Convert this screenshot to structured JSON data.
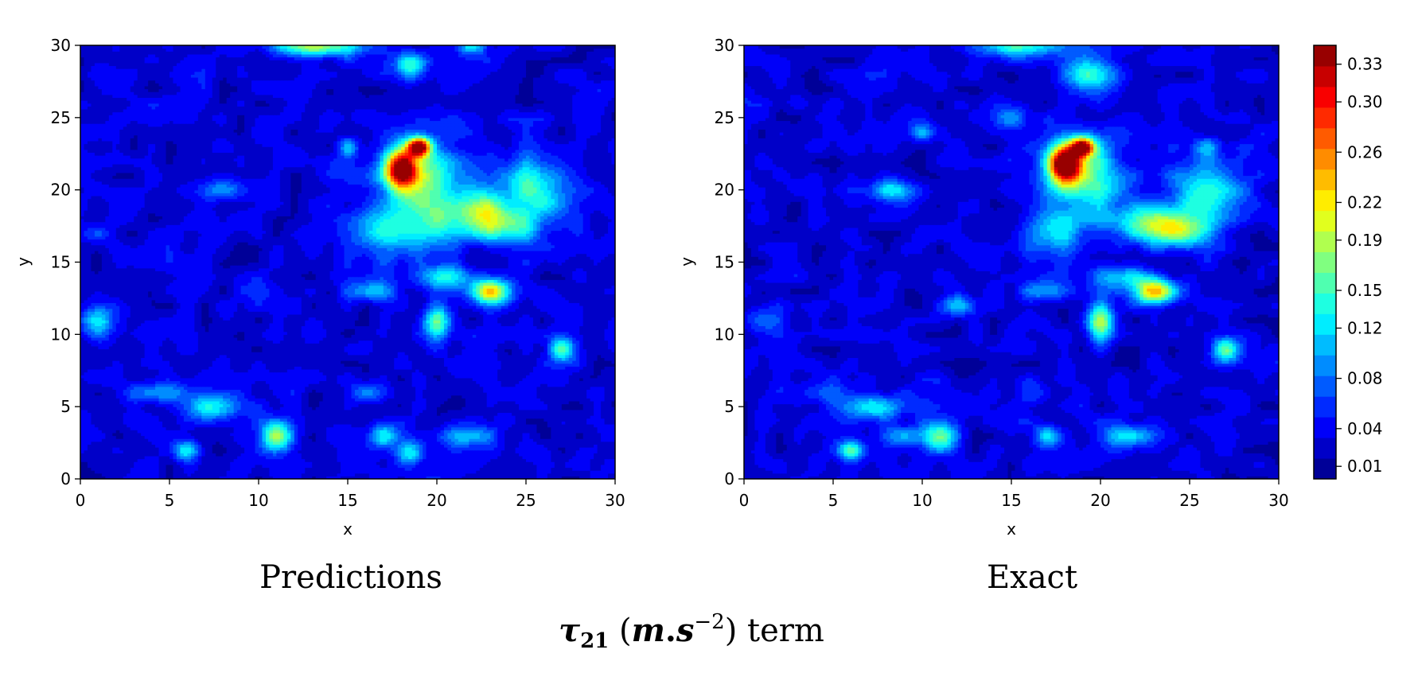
{
  "figure": {
    "caption_main": "term",
    "caption_symbol": "τ",
    "caption_sub": "21",
    "caption_unit_open": "(",
    "caption_unit_m": "m",
    "caption_unit_dot": ".",
    "caption_unit_s": "s",
    "caption_unit_exp": "−2",
    "caption_unit_close": ")"
  },
  "chart_data": [
    {
      "type": "heatmap",
      "panel_label": "Predictions",
      "xlabel": "x",
      "ylabel": "y",
      "xlim": [
        0,
        30
      ],
      "ylim": [
        0,
        30
      ],
      "xticks": [
        0,
        5,
        10,
        15,
        20,
        25,
        30
      ],
      "yticks": [
        0,
        5,
        10,
        15,
        20,
        25,
        30
      ],
      "background_level": 0.03,
      "hotspots": [
        {
          "x": 18,
          "y": 21.5,
          "value": 0.31,
          "sx": 0.6,
          "sy": 0.9
        },
        {
          "x": 19,
          "y": 23,
          "value": 0.3,
          "sx": 0.45,
          "sy": 0.45
        },
        {
          "x": 19,
          "y": 21,
          "value": 0.17,
          "sx": 1.6,
          "sy": 1.8
        },
        {
          "x": 23,
          "y": 13,
          "value": 0.22,
          "sx": 0.8,
          "sy": 0.6
        },
        {
          "x": 20.5,
          "y": 18,
          "value": 0.12,
          "sx": 1.2,
          "sy": 1.2
        },
        {
          "x": 22.5,
          "y": 18.5,
          "value": 0.15,
          "sx": 0.9,
          "sy": 1.0
        },
        {
          "x": 25.5,
          "y": 20,
          "value": 0.15,
          "sx": 1.4,
          "sy": 1.5
        },
        {
          "x": 24,
          "y": 17.5,
          "value": 0.14,
          "sx": 1.2,
          "sy": 0.9
        },
        {
          "x": 17.5,
          "y": 17,
          "value": 0.13,
          "sx": 1.3,
          "sy": 1.2
        },
        {
          "x": 20.5,
          "y": 14,
          "value": 0.13,
          "sx": 1.0,
          "sy": 0.6
        },
        {
          "x": 20,
          "y": 10.8,
          "value": 0.16,
          "sx": 0.5,
          "sy": 0.9
        },
        {
          "x": 16.5,
          "y": 13,
          "value": 0.11,
          "sx": 1.0,
          "sy": 0.5
        },
        {
          "x": 18.5,
          "y": 28.5,
          "value": 0.15,
          "sx": 0.6,
          "sy": 0.7
        },
        {
          "x": 13.5,
          "y": 30,
          "value": 0.19,
          "sx": 1.8,
          "sy": 0.5
        },
        {
          "x": 11,
          "y": 3,
          "value": 0.18,
          "sx": 0.6,
          "sy": 0.7
        },
        {
          "x": 7.5,
          "y": 5,
          "value": 0.14,
          "sx": 1.2,
          "sy": 0.6
        },
        {
          "x": 4.5,
          "y": 6,
          "value": 0.1,
          "sx": 1.3,
          "sy": 0.5
        },
        {
          "x": 27,
          "y": 9,
          "value": 0.16,
          "sx": 0.5,
          "sy": 0.6
        },
        {
          "x": 6,
          "y": 2,
          "value": 0.12,
          "sx": 0.5,
          "sy": 0.5
        },
        {
          "x": 17,
          "y": 3,
          "value": 0.14,
          "sx": 0.5,
          "sy": 0.6
        },
        {
          "x": 18.5,
          "y": 1.8,
          "value": 0.12,
          "sx": 0.5,
          "sy": 0.6
        },
        {
          "x": 21.5,
          "y": 3,
          "value": 0.1,
          "sx": 1.2,
          "sy": 0.5
        },
        {
          "x": 8,
          "y": 20,
          "value": 0.11,
          "sx": 0.9,
          "sy": 0.5
        },
        {
          "x": 15,
          "y": 23,
          "value": 0.1,
          "sx": 0.4,
          "sy": 0.5
        },
        {
          "x": 1,
          "y": 11,
          "value": 0.12,
          "sx": 0.6,
          "sy": 0.8
        },
        {
          "x": 22,
          "y": 30,
          "value": 0.14,
          "sx": 0.6,
          "sy": 0.4
        },
        {
          "x": 16,
          "y": 6,
          "value": 0.08,
          "sx": 0.6,
          "sy": 0.6
        },
        {
          "x": 1,
          "y": 17,
          "value": 0.06,
          "sx": 0.5,
          "sy": 0.5
        },
        {
          "x": 10,
          "y": 13,
          "value": 0.06,
          "sx": 0.5,
          "sy": 0.5
        }
      ]
    },
    {
      "type": "heatmap",
      "panel_label": "Exact",
      "xlabel": "x",
      "ylabel": "y",
      "xlim": [
        0,
        30
      ],
      "ylim": [
        0,
        30
      ],
      "xticks": [
        0,
        5,
        10,
        15,
        20,
        25,
        30
      ],
      "yticks": [
        0,
        5,
        10,
        15,
        20,
        25,
        30
      ],
      "background_level": 0.03,
      "hotspots": [
        {
          "x": 18,
          "y": 21.8,
          "value": 0.34,
          "sx": 0.6,
          "sy": 0.9
        },
        {
          "x": 19,
          "y": 23,
          "value": 0.31,
          "sx": 0.45,
          "sy": 0.45
        },
        {
          "x": 19,
          "y": 21,
          "value": 0.17,
          "sx": 1.5,
          "sy": 1.8
        },
        {
          "x": 23,
          "y": 13,
          "value": 0.24,
          "sx": 0.8,
          "sy": 0.6
        },
        {
          "x": 22.5,
          "y": 17.8,
          "value": 0.15,
          "sx": 1.4,
          "sy": 0.9
        },
        {
          "x": 24.5,
          "y": 17.2,
          "value": 0.17,
          "sx": 1.2,
          "sy": 0.8
        },
        {
          "x": 26,
          "y": 20,
          "value": 0.14,
          "sx": 1.5,
          "sy": 1.5
        },
        {
          "x": 17.5,
          "y": 17,
          "value": 0.11,
          "sx": 1.2,
          "sy": 1.1
        },
        {
          "x": 21,
          "y": 14,
          "value": 0.12,
          "sx": 1.1,
          "sy": 0.6
        },
        {
          "x": 20,
          "y": 10.8,
          "value": 0.18,
          "sx": 0.5,
          "sy": 0.9
        },
        {
          "x": 17,
          "y": 13,
          "value": 0.1,
          "sx": 1.0,
          "sy": 0.5
        },
        {
          "x": 19.5,
          "y": 28,
          "value": 0.14,
          "sx": 1.0,
          "sy": 1.0
        },
        {
          "x": 15,
          "y": 30,
          "value": 0.14,
          "sx": 1.8,
          "sy": 0.5
        },
        {
          "x": 11,
          "y": 3,
          "value": 0.18,
          "sx": 0.6,
          "sy": 0.7
        },
        {
          "x": 7.5,
          "y": 5,
          "value": 0.12,
          "sx": 1.2,
          "sy": 0.6
        },
        {
          "x": 4.5,
          "y": 6,
          "value": 0.08,
          "sx": 1.2,
          "sy": 0.5
        },
        {
          "x": 27,
          "y": 9,
          "value": 0.16,
          "sx": 0.5,
          "sy": 0.6
        },
        {
          "x": 6,
          "y": 2,
          "value": 0.16,
          "sx": 0.5,
          "sy": 0.5
        },
        {
          "x": 17,
          "y": 3,
          "value": 0.11,
          "sx": 0.5,
          "sy": 0.6
        },
        {
          "x": 21.5,
          "y": 3,
          "value": 0.14,
          "sx": 1.1,
          "sy": 0.5
        },
        {
          "x": 8.5,
          "y": 20,
          "value": 0.13,
          "sx": 0.9,
          "sy": 0.5
        },
        {
          "x": 10,
          "y": 24,
          "value": 0.1,
          "sx": 0.4,
          "sy": 0.5
        },
        {
          "x": 15,
          "y": 25,
          "value": 0.08,
          "sx": 0.7,
          "sy": 0.6
        },
        {
          "x": 1,
          "y": 11,
          "value": 0.09,
          "sx": 0.6,
          "sy": 0.8
        },
        {
          "x": 12,
          "y": 12,
          "value": 0.1,
          "sx": 0.7,
          "sy": 0.5
        },
        {
          "x": 9,
          "y": 3,
          "value": 0.1,
          "sx": 0.8,
          "sy": 0.5
        },
        {
          "x": 26,
          "y": 23,
          "value": 0.09,
          "sx": 0.5,
          "sy": 0.5
        },
        {
          "x": 16,
          "y": 6,
          "value": 0.08,
          "sx": 0.6,
          "sy": 0.6
        }
      ]
    }
  ],
  "colorbar": {
    "min": 0,
    "max": 0.345,
    "levels": 21,
    "tick_values": [
      0.01,
      0.04,
      0.08,
      0.12,
      0.15,
      0.19,
      0.22,
      0.26,
      0.3,
      0.33
    ],
    "tick_labels": [
      "0.01",
      "0.04",
      "0.08",
      "0.12",
      "0.15",
      "0.19",
      "0.22",
      "0.26",
      "0.30",
      "0.33"
    ],
    "colormap": "jet"
  }
}
